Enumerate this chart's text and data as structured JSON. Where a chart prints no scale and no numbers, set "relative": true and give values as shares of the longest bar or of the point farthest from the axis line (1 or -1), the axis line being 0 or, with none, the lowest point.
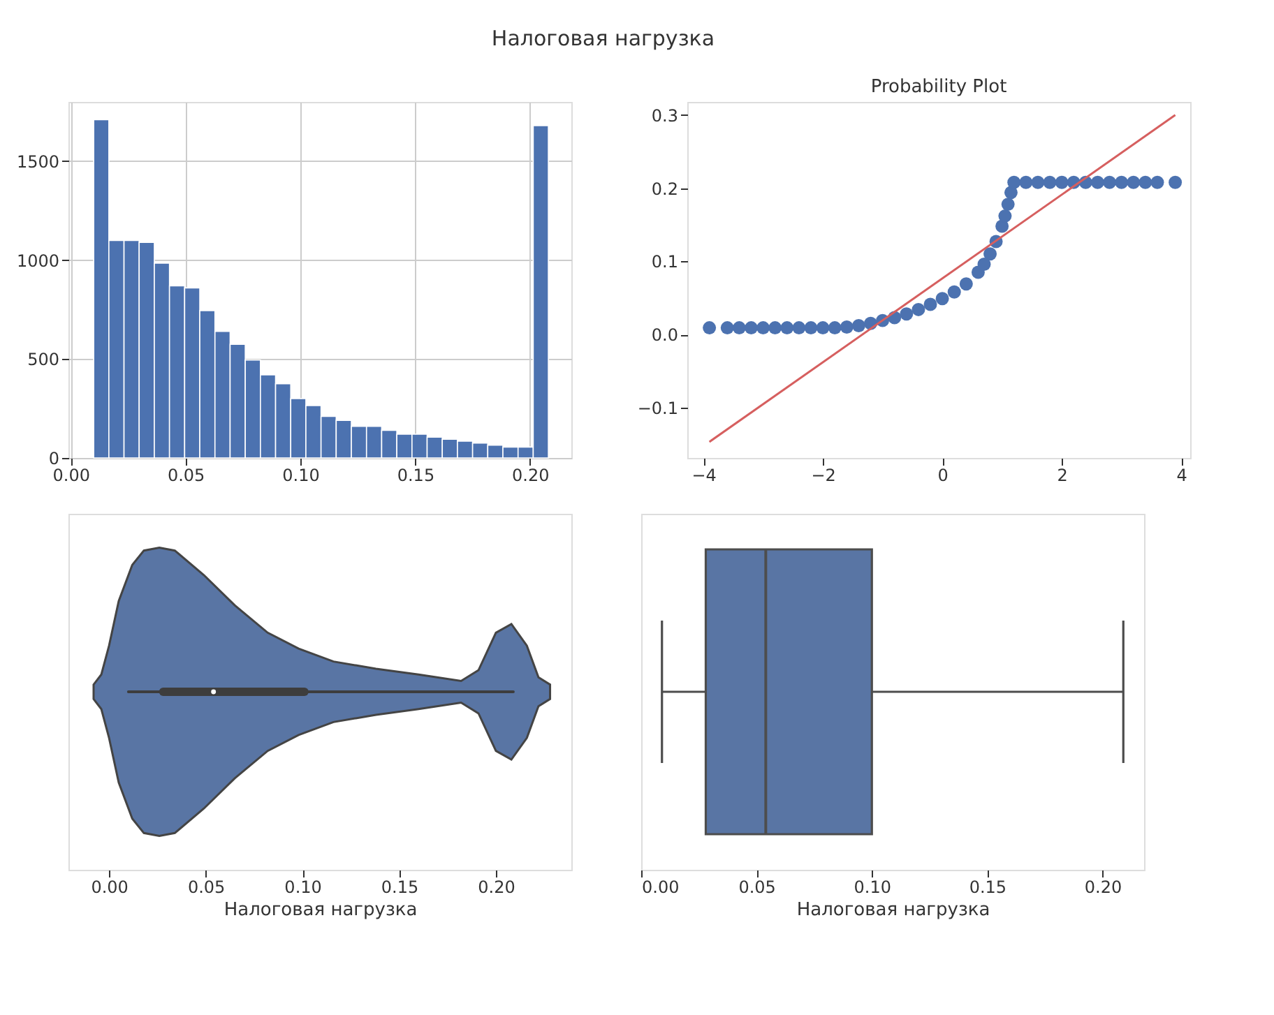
{
  "chart_data": [
    {
      "type": "histogram",
      "title": "Налоговая нагрузка",
      "bins": [
        0.01,
        0.0166,
        0.0232,
        0.0298,
        0.0364,
        0.043,
        0.0496,
        0.0562,
        0.0628,
        0.0694,
        0.076,
        0.0826,
        0.0892,
        0.0958,
        0.1024,
        0.109,
        0.1156,
        0.1222,
        0.1288,
        0.1354,
        0.142,
        0.1486,
        0.1552,
        0.1618,
        0.1684,
        0.175,
        0.1816,
        0.1882,
        0.1948,
        0.2014,
        0.208
      ],
      "values": [
        1710,
        1100,
        1100,
        1090,
        985,
        870,
        860,
        745,
        640,
        575,
        495,
        420,
        375,
        300,
        265,
        210,
        190,
        160,
        160,
        140,
        120,
        120,
        105,
        95,
        85,
        75,
        65,
        55,
        55,
        1680
      ],
      "color": "#4c72b0",
      "xlim": [
        -0.001,
        0.218
      ],
      "ylim": [
        0,
        1800
      ],
      "xticks": [
        {
          "value": 0,
          "label": "0.00"
        },
        {
          "value": 0.05,
          "label": "0.05"
        },
        {
          "value": 0.1,
          "label": "0.10"
        },
        {
          "value": 0.15,
          "label": "0.15"
        },
        {
          "value": 0.2,
          "label": "0.20"
        }
      ],
      "yticks": [
        0,
        500,
        1000,
        1500
      ],
      "grid": true
    },
    {
      "type": "scatter",
      "title": "Probability Plot",
      "xlim": [
        -4.27,
        4.15
      ],
      "ylim": [
        -0.169,
        0.318
      ],
      "xticks": [
        {
          "value": -4,
          "label": "−4"
        },
        {
          "value": -2,
          "label": "−2"
        },
        0,
        2,
        4
      ],
      "yticks": [
        {
          "value": -0.1,
          "label": "−0.1"
        },
        {
          "value": 0,
          "label": "0.0"
        },
        0.1,
        0.2,
        0.3
      ],
      "series": [
        {
          "type": "scatter",
          "marker": "circle",
          "color": "#4c72b0",
          "x": [
            -3.9,
            -3.6,
            -3.4,
            -3.2,
            -3.0,
            -2.8,
            -2.6,
            -2.4,
            -2.2,
            -2.0,
            -1.8,
            -1.6,
            -1.4,
            -1.2,
            -1.0,
            -0.8,
            -0.6,
            -0.4,
            -0.2,
            0.0,
            0.2,
            0.4,
            0.6,
            0.7,
            0.8,
            0.9,
            1.0,
            1.05,
            1.1,
            1.15,
            1.2,
            1.4,
            1.6,
            1.8,
            2.0,
            2.2,
            2.4,
            2.6,
            2.8,
            3.0,
            3.2,
            3.4,
            3.6,
            3.9
          ],
          "values": [
            0.009,
            0.009,
            0.009,
            0.009,
            0.009,
            0.009,
            0.009,
            0.009,
            0.009,
            0.009,
            0.009,
            0.01,
            0.012,
            0.015,
            0.019,
            0.023,
            0.028,
            0.034,
            0.041,
            0.049,
            0.058,
            0.069,
            0.085,
            0.096,
            0.11,
            0.127,
            0.148,
            0.162,
            0.178,
            0.194,
            0.208,
            0.208,
            0.208,
            0.208,
            0.208,
            0.208,
            0.208,
            0.208,
            0.208,
            0.208,
            0.208,
            0.208,
            0.208,
            0.208
          ]
        },
        {
          "type": "line",
          "color": "#d65f5f",
          "x": [
            -3.9,
            3.9
          ],
          "values": [
            -0.147,
            0.3
          ]
        }
      ]
    },
    {
      "type": "area",
      "relative": true,
      "xlabel": "Налоговая нагрузка",
      "tick_labels": "x",
      "xlim": [
        -0.021,
        0.239
      ],
      "xticks": [
        {
          "value": 0,
          "label": "0.00"
        },
        {
          "value": 0.05,
          "label": "0.05"
        },
        {
          "value": 0.1,
          "label": "0.10"
        },
        {
          "value": 0.15,
          "label": "0.15"
        },
        {
          "value": 0.2,
          "label": "0.20"
        }
      ],
      "series": [
        {
          "type": "area",
          "color": "#5975a4",
          "x": [
            -0.008,
            -0.004,
            0.0,
            0.005,
            0.012,
            0.018,
            0.026,
            0.034,
            0.049,
            0.065,
            0.082,
            0.098,
            0.116,
            0.138,
            0.16,
            0.182,
            0.191,
            0.2,
            0.208,
            0.216,
            0.222,
            0.228
          ],
          "values": [
            0.05,
            0.12,
            0.32,
            0.63,
            0.88,
            0.98,
            1.0,
            0.98,
            0.81,
            0.6,
            0.41,
            0.3,
            0.21,
            0.16,
            0.12,
            0.075,
            0.15,
            0.41,
            0.47,
            0.32,
            0.1,
            0.05
          ]
        },
        {
          "type": "line",
          "color": "#3d3d3d",
          "x": [
            0.01,
            0.209
          ],
          "values": [
            0,
            0
          ]
        },
        {
          "type": "line",
          "color": "#3d3d3d",
          "x": [
            0.028,
            0.101
          ],
          "values": [
            0,
            0
          ]
        },
        {
          "type": "scatter",
          "marker": "circle",
          "color": "#ffffff",
          "x": [
            0.054
          ],
          "values": [
            0
          ]
        }
      ]
    },
    {
      "type": "box",
      "orientation": "horizontal",
      "categories": [
        null
      ],
      "xlabel": "Налоговая нагрузка",
      "tick_labels": "x",
      "xlim": [
        0,
        0.218
      ],
      "xticks": [
        {
          "value": 0,
          "label": "0.00"
        },
        {
          "value": 0.05,
          "label": "0.05"
        },
        {
          "value": 0.1,
          "label": "0.10"
        },
        {
          "value": 0.15,
          "label": "0.15"
        },
        {
          "value": 0.2,
          "label": "0.20"
        }
      ],
      "color": "#5975a4",
      "boxes": [
        {
          "low": 0.009,
          "q1": 0.028,
          "median": 0.054,
          "q3": 0.1,
          "high": 0.209
        }
      ]
    }
  ]
}
